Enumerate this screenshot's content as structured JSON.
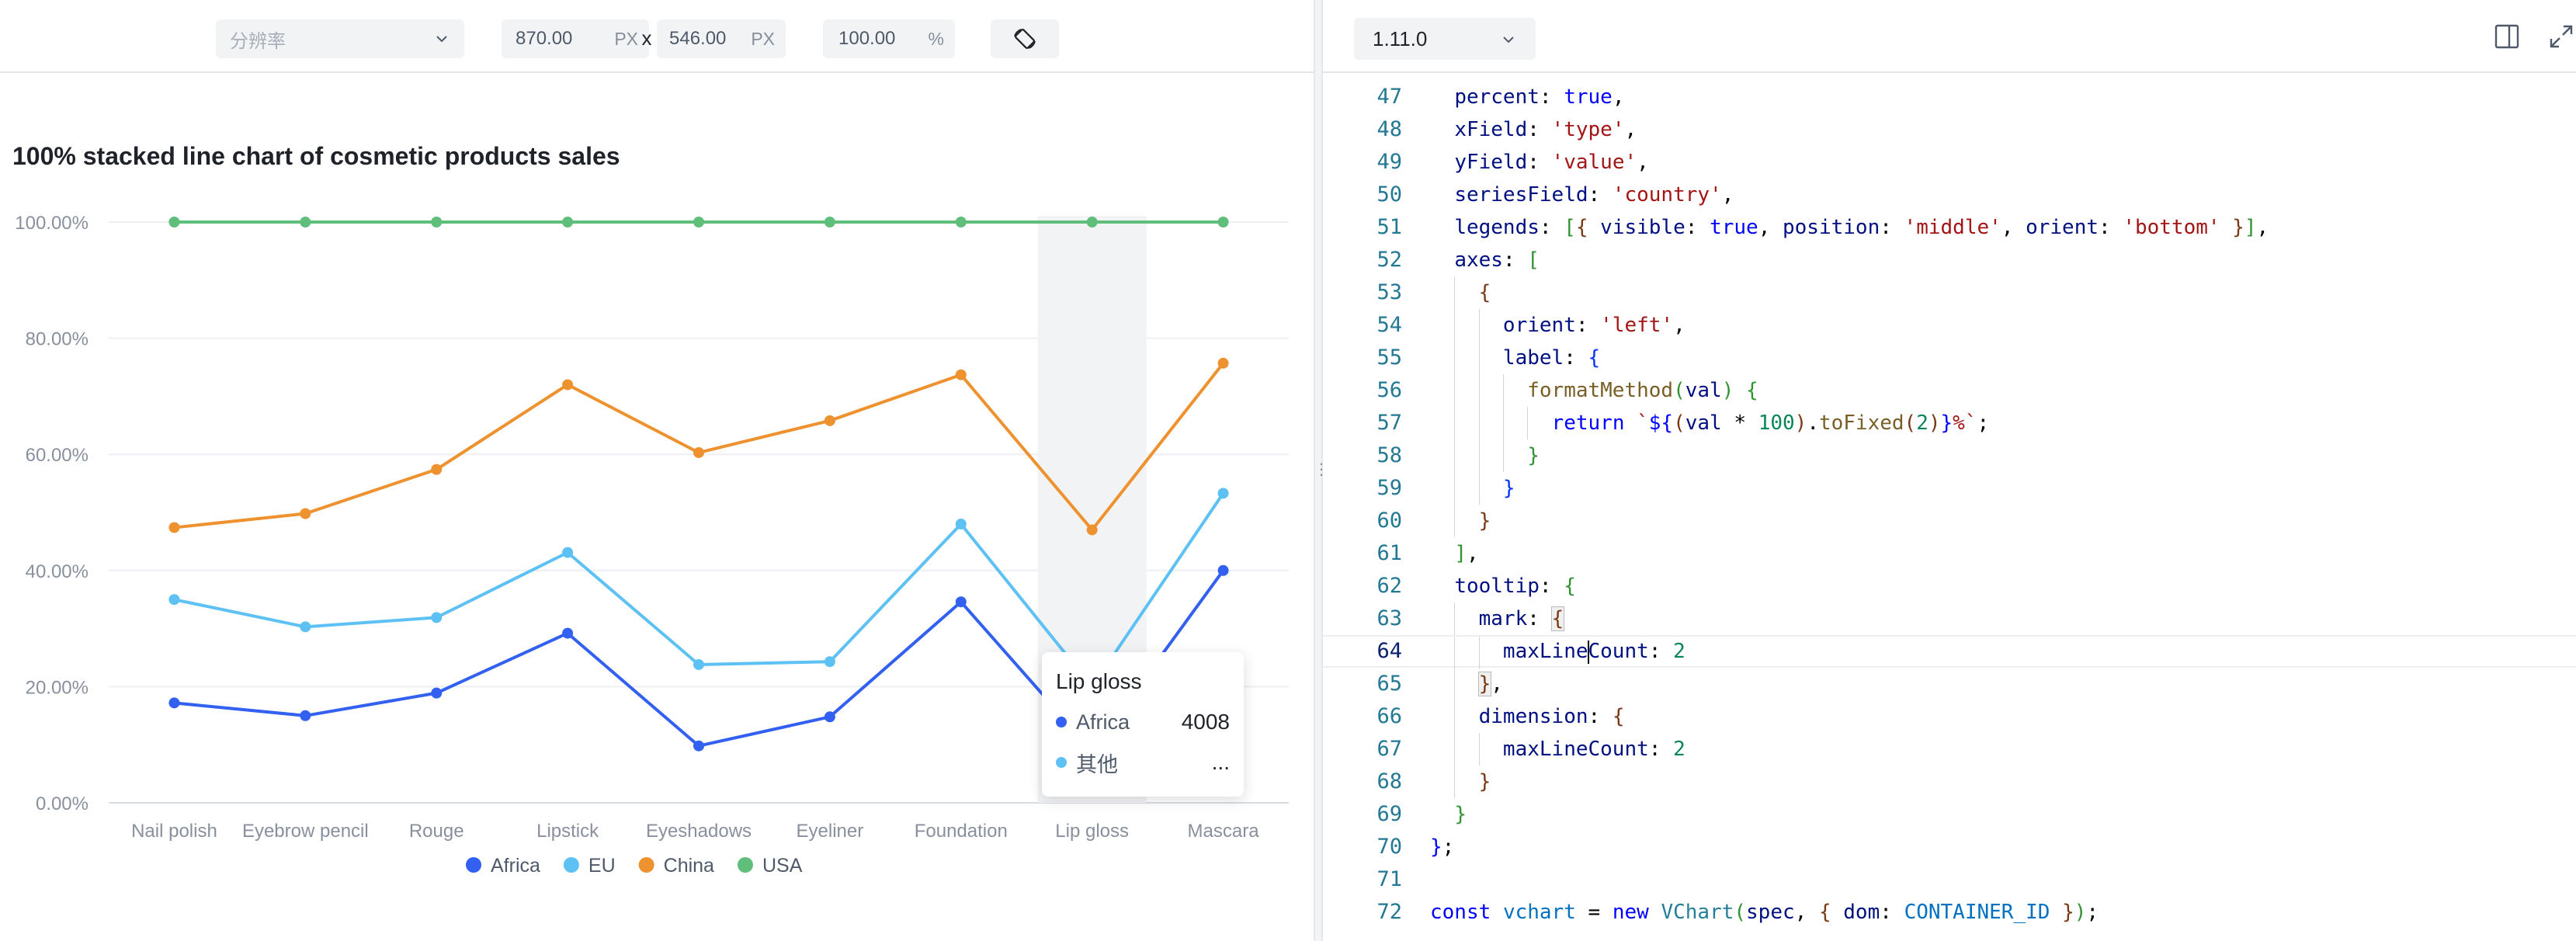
{
  "toolbar": {
    "resolution_placeholder": "分辨率",
    "width_value": "870.00",
    "height_value": "546.00",
    "px_unit": "PX",
    "size_separator": "x",
    "zoom_value": "100.00",
    "zoom_unit": "%"
  },
  "editor": {
    "version": "1.11.0"
  },
  "colors": {
    "africa": "#3260f0",
    "eu": "#5dc1f4",
    "china": "#ee9230",
    "usa": "#5fbf7a"
  },
  "chart_data": {
    "type": "line",
    "title": "100% stacked line chart of cosmetic products sales",
    "categories": [
      "Nail polish",
      "Eyebrow pencil",
      "Rouge",
      "Lipstick",
      "Eyeshadows",
      "Eyeliner",
      "Foundation",
      "Lip gloss",
      "Mascara"
    ],
    "y_tick_labels": [
      "0.00%",
      "20.00%",
      "40.00%",
      "60.00%",
      "80.00%",
      "100.00%"
    ],
    "ylim": [
      0,
      100
    ],
    "grid": true,
    "legend_placement": "bottom",
    "series": [
      {
        "name": "Africa",
        "values": [
          17.2,
          15.0,
          18.9,
          29.2,
          9.8,
          14.8,
          34.6,
          9.0,
          40.0
        ]
      },
      {
        "name": "EU",
        "values": [
          35.0,
          30.3,
          31.9,
          43.1,
          23.8,
          24.3,
          48.0,
          20.0,
          53.3
        ]
      },
      {
        "name": "China",
        "values": [
          47.4,
          49.8,
          57.4,
          72.0,
          60.3,
          65.8,
          73.7,
          47.0,
          75.7
        ]
      },
      {
        "name": "USA",
        "values": [
          100,
          100,
          100,
          100,
          100,
          100,
          100,
          100,
          100
        ]
      }
    ],
    "highlighted_category": "Lip gloss",
    "tooltip": {
      "title": "Lip gloss",
      "rows": [
        {
          "label": "Africa",
          "value": "4008"
        },
        {
          "label": "其他",
          "value": "..."
        }
      ]
    }
  },
  "code_lines": [
    {
      "n": "47",
      "html": "  <span class='tok-var'>percent</span>: <span class='tok-kw'>true</span>,"
    },
    {
      "n": "48",
      "html": "  <span class='tok-var'>xField</span>: <span class='tok-str'>'type'</span>,"
    },
    {
      "n": "49",
      "html": "  <span class='tok-var'>yField</span>: <span class='tok-str'>'value'</span>,"
    },
    {
      "n": "50",
      "html": "  <span class='tok-var'>seriesField</span>: <span class='tok-str'>'country'</span>,"
    },
    {
      "n": "51",
      "html": "  <span class='tok-var'>legends</span>: <span class='tok-b1'>[</span><span class='tok-b2'>{</span> <span class='tok-var'>visible</span>: <span class='tok-kw'>true</span>, <span class='tok-var'>position</span>: <span class='tok-str'>'middle'</span>, <span class='tok-var'>orient</span>: <span class='tok-str'>'bottom'</span> <span class='tok-b2'>}</span><span class='tok-b1'>]</span>,"
    },
    {
      "n": "52",
      "html": "  <span class='tok-var'>axes</span>: <span class='tok-b1'>[</span>"
    },
    {
      "n": "53",
      "html": "    <span class='tok-b2'>{</span>"
    },
    {
      "n": "54",
      "html": "      <span class='tok-var'>orient</span>: <span class='tok-str'>'left'</span>,"
    },
    {
      "n": "55",
      "html": "      <span class='tok-var'>label</span>: <span class='tok-b3'>{</span>"
    },
    {
      "n": "56",
      "html": "        <span class='tok-fn'>formatMethod</span><span class='tok-b1'>(</span><span class='tok-var'>val</span><span class='tok-b1'>)</span> <span class='tok-b1'>{</span>"
    },
    {
      "n": "57",
      "html": "          <span class='tok-kw'>return</span> <span class='tok-str'>`</span><span class='tok-kw'>${</span><span class='tok-b2'>(</span><span class='tok-var'>val</span> * <span class='tok-num'>100</span><span class='tok-b2'>)</span>.<span class='tok-fn'>toFixed</span><span class='tok-b2'>(</span><span class='tok-num'>2</span><span class='tok-b2'>)</span><span class='tok-kw'>}</span><span class='tok-str'>%`</span>;"
    },
    {
      "n": "58",
      "html": "        <span class='tok-b1'>}</span>"
    },
    {
      "n": "59",
      "html": "      <span class='tok-b3'>}</span>"
    },
    {
      "n": "60",
      "html": "    <span class='tok-b2'>}</span>"
    },
    {
      "n": "61",
      "html": "  <span class='tok-b1'>]</span>,"
    },
    {
      "n": "62",
      "html": "  <span class='tok-var'>tooltip</span>: <span class='tok-b1'>{</span>"
    },
    {
      "n": "63",
      "html": "    <span class='tok-var'>mark</span>: <span class='tok-b2 bm'>{</span>"
    },
    {
      "n": "64",
      "html": "      <span class='tok-var'>maxLine</span><span class='caret'></span><span class='tok-var'>Count</span>: <span class='tok-num'>2</span>",
      "active": true
    },
    {
      "n": "65",
      "html": "    <span class='tok-b2 bm'>}</span>,"
    },
    {
      "n": "66",
      "html": "    <span class='tok-var'>dimension</span>: <span class='tok-b2'>{</span>"
    },
    {
      "n": "67",
      "html": "      <span class='tok-var'>maxLineCount</span>: <span class='tok-num'>2</span>"
    },
    {
      "n": "68",
      "html": "    <span class='tok-b2'>}</span>"
    },
    {
      "n": "69",
      "html": "  <span class='tok-b1'>}</span>"
    },
    {
      "n": "70",
      "html": "<span class='tok-kw'>}</span>;"
    },
    {
      "n": "71",
      "html": ""
    },
    {
      "n": "72",
      "html": "<span class='tok-kw'>const</span> <span class='tok-const'>vchart</span> = <span class='tok-kw'>new</span> <span class='tok-cls'>VChart</span><span class='tok-b1'>(</span><span class='tok-var'>spec</span>, <span class='tok-b2'>{</span> <span class='tok-var'>dom</span>: <span class='tok-const'>CONTAINER_ID</span> <span class='tok-b2'>}</span><span class='tok-b1'>)</span>;"
    }
  ]
}
